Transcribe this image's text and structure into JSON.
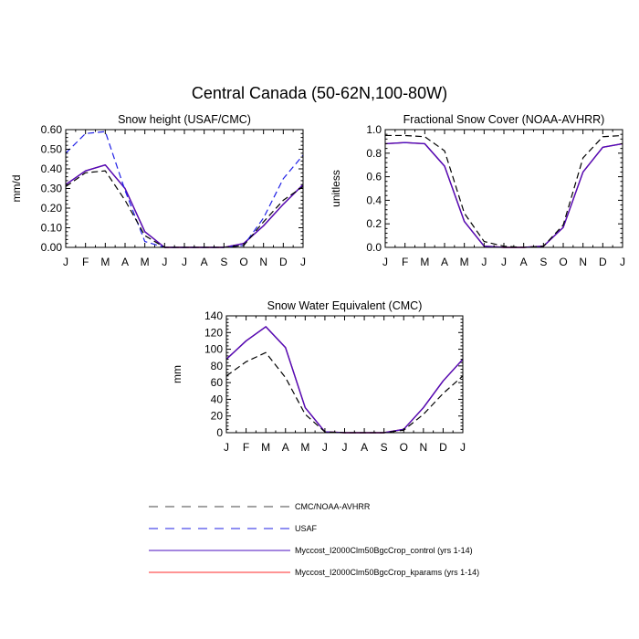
{
  "figure_title": "Central Canada (50-62N,100-80W)",
  "chart_data": [
    {
      "type": "line",
      "title": "Snow height (USAF/CMC)",
      "xlabel": "",
      "ylabel": "mm/d",
      "categories": [
        "J",
        "F",
        "M",
        "A",
        "M",
        "J",
        "J",
        "A",
        "S",
        "O",
        "N",
        "D",
        "J"
      ],
      "ylim": [
        0,
        0.6
      ],
      "yticks": [
        0,
        0.1,
        0.2,
        0.3,
        0.4,
        0.5,
        0.6
      ],
      "ytick_labels": [
        "0.00",
        "0.10",
        "0.20",
        "0.30",
        "0.40",
        "0.50",
        "0.60"
      ],
      "grid": false,
      "series": [
        {
          "ref": 0,
          "values": [
            0.31,
            0.38,
            0.39,
            0.24,
            0.06,
            0.0,
            0.0,
            0.0,
            0.0,
            0.01,
            0.13,
            0.24,
            0.31
          ]
        },
        {
          "ref": 1,
          "values": [
            0.48,
            0.58,
            0.59,
            0.29,
            0.03,
            0.0,
            0.0,
            0.0,
            0.0,
            0.01,
            0.15,
            0.35,
            0.47
          ]
        },
        {
          "ref": 2,
          "values": [
            0.32,
            0.39,
            0.42,
            0.3,
            0.08,
            0.0,
            0.0,
            0.0,
            0.0,
            0.02,
            0.11,
            0.22,
            0.32
          ]
        },
        {
          "ref": 3,
          "values": [
            0.32,
            0.39,
            0.42,
            0.3,
            0.08,
            0.0,
            0.0,
            0.0,
            0.0,
            0.02,
            0.11,
            0.22,
            0.32
          ]
        }
      ]
    },
    {
      "type": "line",
      "title": "Fractional Snow Cover (NOAA-AVHRR)",
      "xlabel": "",
      "ylabel": "unitless",
      "categories": [
        "J",
        "F",
        "M",
        "A",
        "M",
        "J",
        "J",
        "A",
        "S",
        "O",
        "N",
        "D",
        "J"
      ],
      "ylim": [
        0,
        1.0
      ],
      "yticks": [
        0,
        0.2,
        0.4,
        0.6,
        0.8,
        1.0
      ],
      "ytick_labels": [
        "0.0",
        "0.2",
        "0.4",
        "0.6",
        "0.8",
        "1.0"
      ],
      "grid": false,
      "series": [
        {
          "ref": 0,
          "values": [
            0.95,
            0.95,
            0.94,
            0.82,
            0.29,
            0.05,
            0.01,
            0.0,
            0.01,
            0.19,
            0.76,
            0.94,
            0.95
          ]
        },
        {
          "ref": 2,
          "values": [
            0.88,
            0.89,
            0.88,
            0.69,
            0.22,
            0.01,
            0.0,
            0.0,
            0.01,
            0.17,
            0.64,
            0.85,
            0.88
          ]
        },
        {
          "ref": 3,
          "values": [
            0.88,
            0.89,
            0.88,
            0.69,
            0.22,
            0.01,
            0.0,
            0.0,
            0.01,
            0.17,
            0.64,
            0.85,
            0.88
          ]
        }
      ]
    },
    {
      "type": "line",
      "title": "Snow Water Equivalent (CMC)",
      "xlabel": "",
      "ylabel": "mm",
      "categories": [
        "J",
        "F",
        "M",
        "A",
        "M",
        "J",
        "J",
        "A",
        "S",
        "O",
        "N",
        "D",
        "J"
      ],
      "ylim": [
        0,
        140
      ],
      "yticks": [
        0,
        20,
        40,
        60,
        80,
        100,
        120,
        140
      ],
      "ytick_labels": [
        "0",
        "20",
        "40",
        "60",
        "80",
        "100",
        "120",
        "140"
      ],
      "grid": false,
      "series": [
        {
          "ref": 0,
          "values": [
            68,
            85,
            96,
            66,
            22,
            1,
            0,
            0,
            0,
            3,
            22,
            47,
            68
          ]
        },
        {
          "ref": 2,
          "values": [
            88,
            110,
            127,
            102,
            30,
            1,
            0,
            0,
            0,
            4,
            30,
            62,
            88
          ]
        },
        {
          "ref": 3,
          "values": [
            88,
            110,
            127,
            102,
            30,
            1,
            0,
            0,
            0,
            4,
            30,
            62,
            88
          ]
        }
      ]
    }
  ],
  "legend": {
    "placement": "bottom-center",
    "entries": [
      {
        "label": "CMC/NOAA-AVHRR",
        "color": "#000000",
        "dash": "dashed"
      },
      {
        "label": "USAF",
        "color": "#1f1fe6",
        "dash": "dashed"
      },
      {
        "label": "Myccost_I2000Clm50BgcCrop_control (yrs 1-14)",
        "color": "#4a0cbf",
        "dash": "solid"
      },
      {
        "label": "Myccost_I2000Clm50BgcCrop_kparams (yrs 1-14)",
        "color": "#ff2a2a",
        "dash": "solid"
      }
    ]
  }
}
